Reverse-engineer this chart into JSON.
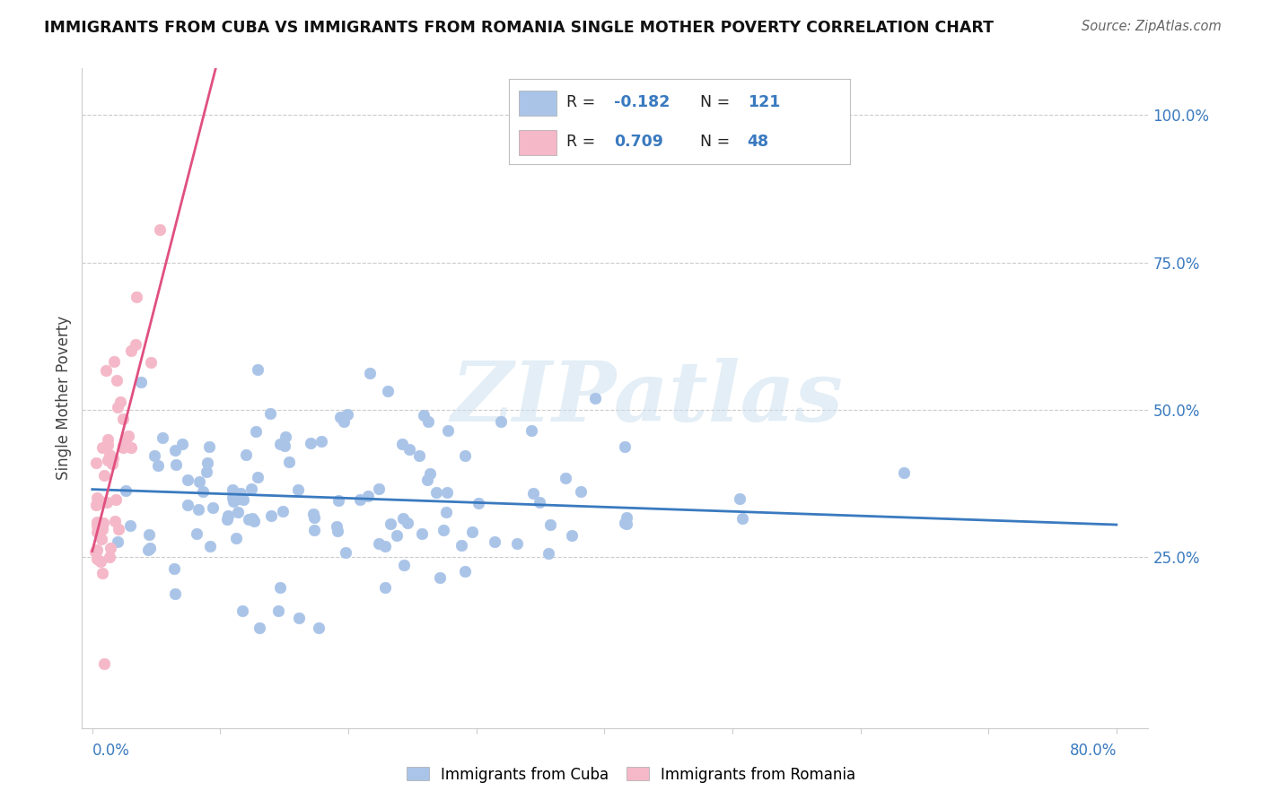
{
  "title": "IMMIGRANTS FROM CUBA VS IMMIGRANTS FROM ROMANIA SINGLE MOTHER POVERTY CORRELATION CHART",
  "source": "Source: ZipAtlas.com",
  "ylabel": "Single Mother Poverty",
  "cuba_R": -0.182,
  "cuba_N": 121,
  "romania_R": 0.709,
  "romania_N": 48,
  "cuba_color": "#aac4e8",
  "romania_color": "#f4b8c8",
  "cuba_line_color": "#3a7abf",
  "romania_line_color": "#e05080",
  "watermark": "ZIPatlas",
  "xlim": [
    0.0,
    0.8
  ],
  "ylim": [
    0.0,
    1.05
  ],
  "right_ytick_vals": [
    1.0,
    0.75,
    0.5,
    0.25
  ],
  "right_ytick_labels": [
    "100.0%",
    "75.0%",
    "50.0%",
    "25.0%"
  ],
  "grid_color": "#cccccc",
  "cuba_line_intercept": 0.365,
  "cuba_line_slope": -0.075,
  "romania_line_intercept": 0.26,
  "romania_line_slope": 8.5,
  "romania_line_xmax": 0.115
}
